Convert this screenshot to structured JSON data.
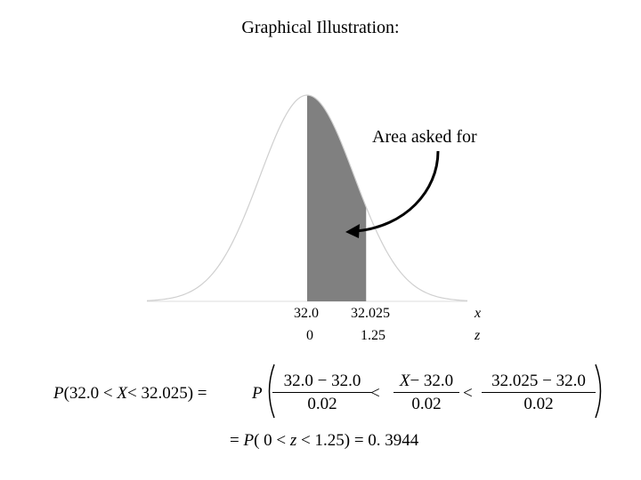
{
  "title": "Graphical Illustration:",
  "annotation": "Area asked for",
  "axis": {
    "x_name": "x",
    "z_name": "z",
    "x_labels": [
      "32.0",
      "32.025"
    ],
    "z_labels": [
      "0",
      "1.25"
    ]
  },
  "distribution": {
    "mean": 32.0,
    "sd": 0.02,
    "shaded_from": 32.0,
    "shaded_to": 32.025
  },
  "colors": {
    "shade": "#808080",
    "curve": "#cfcfcf",
    "axis": "#dddddd",
    "arrow": "#000000"
  },
  "formula": {
    "line1_left_prefix": "P",
    "line1_left_body": "(32.0 < ",
    "line1_left_var": "X",
    "line1_left_end": "< 32.025) =",
    "line1_P": "P",
    "frac1_num": "32.0 − 32.0",
    "frac1_den": "0.02",
    "lt": "<",
    "frac2_num_var": "X",
    "frac2_num_rest": "− 32.0",
    "frac2_den": "0.02",
    "frac3_num": "32.025 − 32.0",
    "frac3_den": "0.02",
    "line2_eq": "=",
    "line2_P": "P",
    "line2_mid1": "( 0 < ",
    "line2_z": "z",
    "line2_mid2": " < 1.25) = 0. 3944"
  }
}
